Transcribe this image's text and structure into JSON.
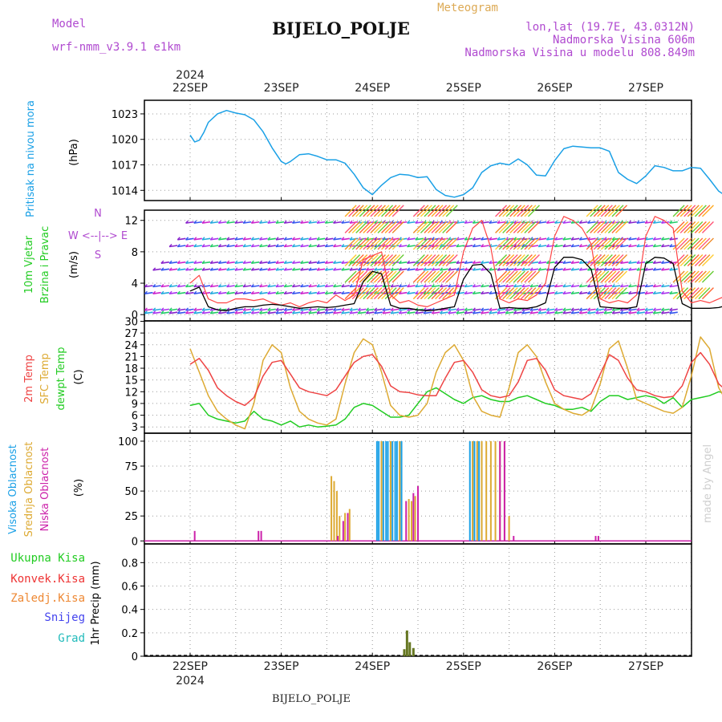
{
  "header": {
    "model_label": "Model",
    "model_name": "wrf-nmm_v3.9.1 e1km",
    "meteogram_label": "Meteogram",
    "station": "BIJELO_POLJE",
    "lonlat": "lon,lat (19.7E, 43.0312N)",
    "altitude": "Nadmorska Visina 606m",
    "model_altitude": "Nadmorska Visina u modelu 808.849m"
  },
  "dates": {
    "year": "2024",
    "labels": [
      "22SEP",
      "23SEP",
      "24SEP",
      "25SEP",
      "26SEP",
      "27SEP"
    ]
  },
  "footer": {
    "station": "BIJELO_POLJE"
  },
  "watermark": "made by Angel",
  "colors": {
    "pressure": "#1aa0e6",
    "wind_label": "#22cc22",
    "wind_speed": "#000000",
    "gust": "#ff4444",
    "temp_2m": "#ee4444",
    "temp_sfc": "#ddaa33",
    "dewpoint": "#22cc22",
    "cloud_high": "#1aa0e6",
    "cloud_mid": "#ddaa33",
    "cloud_low": "#cc22aa",
    "precip_total": "#22cc22",
    "precip_conv": "#ee3333",
    "precip_strat": "#ee8833",
    "snow": "#4444ee",
    "hail": "#22bbbb",
    "precip_bar": "#667722"
  },
  "chart_data": [
    {
      "type": "line",
      "panel": "pressure",
      "ylabel_colored": "Pritisak na nivou mora",
      "unit": "(hPa)",
      "yticks": [
        1014,
        1017,
        1020,
        1023
      ],
      "ylim": [
        1012.8,
        1024.6
      ],
      "xlim": [
        0,
        6
      ],
      "grid": true,
      "x": [
        0.0,
        0.05,
        0.1,
        0.15,
        0.2,
        0.3,
        0.4,
        0.5,
        0.6,
        0.7,
        0.8,
        0.9,
        1.0,
        1.05,
        1.1,
        1.2,
        1.3,
        1.4,
        1.5,
        1.6,
        1.7,
        1.8,
        1.9,
        2.0,
        2.1,
        2.2,
        2.3,
        2.4,
        2.5,
        2.6,
        2.7,
        2.8,
        2.9,
        3.0,
        3.1,
        3.2,
        3.3,
        3.4,
        3.5,
        3.6,
        3.7,
        3.8,
        3.9,
        4.0,
        4.1,
        4.2,
        4.3,
        4.4,
        4.5,
        4.6,
        4.7,
        4.8,
        4.9,
        5.0,
        5.1,
        5.2,
        5.3,
        5.4,
        5.5,
        5.6,
        5.7,
        5.8,
        5.9,
        6.0
      ],
      "values": [
        1020.5,
        1019.7,
        1019.9,
        1020.8,
        1022.0,
        1023.0,
        1023.4,
        1023.1,
        1022.9,
        1022.3,
        1020.9,
        1019.0,
        1017.4,
        1017.1,
        1017.4,
        1018.2,
        1018.3,
        1018.0,
        1017.6,
        1017.6,
        1017.2,
        1015.9,
        1014.3,
        1013.5,
        1014.6,
        1015.5,
        1015.9,
        1015.8,
        1015.5,
        1015.6,
        1014.1,
        1013.4,
        1013.2,
        1013.5,
        1014.3,
        1016.1,
        1016.9,
        1017.2,
        1017.0,
        1017.7,
        1017.0,
        1015.8,
        1015.7,
        1017.5,
        1018.9,
        1019.2,
        1019.1,
        1019.0,
        1019.0,
        1018.6,
        1016.1,
        1015.3,
        1014.8,
        1015.7,
        1016.9,
        1016.7,
        1016.3,
        1016.3,
        1016.7,
        1016.6,
        1015.3,
        1013.9,
        1013.2,
        1012.9
      ]
    },
    {
      "type": "line",
      "panel": "wind",
      "ylabel_colored": [
        "10m Vjetar",
        "Brzina i Pravac"
      ],
      "unit": "(m/s)",
      "legend_compass": [
        "N",
        "W <--|--> E",
        "S"
      ],
      "yticks": [
        0,
        4,
        8,
        12
      ],
      "ylim": [
        -0.8,
        13.3
      ],
      "xlim": [
        0,
        6
      ],
      "grid": true,
      "series": [
        {
          "role": "speed",
          "x": [
            0.0,
            0.1,
            0.2,
            0.3,
            0.4,
            0.5,
            0.6,
            0.7,
            0.8,
            0.9,
            1.0,
            1.1,
            1.2,
            1.3,
            1.4,
            1.5,
            1.6,
            1.7,
            1.8,
            1.9,
            2.0,
            2.1,
            2.2,
            2.3,
            2.4,
            2.5,
            2.6,
            2.7,
            2.8,
            2.9,
            3.0,
            3.1,
            3.2,
            3.3,
            3.4,
            3.5,
            3.6,
            3.7,
            3.8,
            3.9,
            4.0,
            4.1,
            4.2,
            4.3,
            4.4,
            4.5,
            4.6,
            4.7,
            4.8,
            4.9,
            5.0,
            5.1,
            5.2,
            5.3,
            5.4,
            5.5,
            5.6,
            5.7,
            5.8,
            5.9,
            6.0
          ],
          "values": [
            3.0,
            3.5,
            1.0,
            0.6,
            0.5,
            0.8,
            1.0,
            1.0,
            1.2,
            1.3,
            1.2,
            1.0,
            0.8,
            0.9,
            1.0,
            0.9,
            1.0,
            1.2,
            1.4,
            4.2,
            5.5,
            5.2,
            1.2,
            0.8,
            0.8,
            0.6,
            0.5,
            0.6,
            0.8,
            1.0,
            4.5,
            6.3,
            6.4,
            5.2,
            0.8,
            0.9,
            0.8,
            0.8,
            1.0,
            1.5,
            6.0,
            7.3,
            7.3,
            7.0,
            5.8,
            1.0,
            0.9,
            0.8,
            0.8,
            1.0,
            6.5,
            7.3,
            7.2,
            6.5,
            1.4,
            0.8,
            0.8,
            0.8,
            0.9,
            1.2,
            2.8
          ]
        },
        {
          "role": "gust",
          "x": [
            0.0,
            0.1,
            0.2,
            0.3,
            0.4,
            0.5,
            0.6,
            0.7,
            0.8,
            0.9,
            1.0,
            1.1,
            1.2,
            1.3,
            1.4,
            1.5,
            1.6,
            1.7,
            1.8,
            1.9,
            2.0,
            2.1,
            2.2,
            2.3,
            2.4,
            2.5,
            2.6,
            2.7,
            2.8,
            2.9,
            3.0,
            3.1,
            3.2,
            3.3,
            3.4,
            3.5,
            3.6,
            3.7,
            3.8,
            3.9,
            4.0,
            4.1,
            4.2,
            4.3,
            4.4,
            4.5,
            4.6,
            4.7,
            4.8,
            4.9,
            5.0,
            5.1,
            5.2,
            5.3,
            5.4,
            5.5,
            5.6,
            5.7,
            5.8,
            5.9,
            6.0
          ],
          "values": [
            4.0,
            5.0,
            2.0,
            1.5,
            1.5,
            2.0,
            2.0,
            1.8,
            2.0,
            1.5,
            1.2,
            1.5,
            1.0,
            1.5,
            1.8,
            1.5,
            2.5,
            1.8,
            2.5,
            7.0,
            7.5,
            8.0,
            2.5,
            1.5,
            1.8,
            1.2,
            1.0,
            1.5,
            2.0,
            2.5,
            8.0,
            11.0,
            12.0,
            8.5,
            2.0,
            1.5,
            2.0,
            1.8,
            2.5,
            4.0,
            10.0,
            12.5,
            12.0,
            11.0,
            9.0,
            2.0,
            1.5,
            1.8,
            1.5,
            2.5,
            10.0,
            12.5,
            12.0,
            11.0,
            3.0,
            1.5,
            1.8,
            1.5,
            2.0,
            2.5,
            5.0
          ]
        }
      ]
    },
    {
      "type": "line",
      "panel": "temperature",
      "ylabel_colored": [
        "2m Temp",
        "SFC Temp",
        "dewpt Temp"
      ],
      "unit": "(C)",
      "yticks": [
        3,
        6,
        9,
        12,
        15,
        18,
        21,
        24,
        27,
        30
      ],
      "ylim": [
        1.4,
        30.1
      ],
      "xlim": [
        0,
        6
      ],
      "grid": true,
      "series": [
        {
          "role": "t2m",
          "x": [
            0.0,
            0.1,
            0.2,
            0.3,
            0.4,
            0.5,
            0.6,
            0.7,
            0.8,
            0.9,
            1.0,
            1.1,
            1.2,
            1.3,
            1.4,
            1.5,
            1.6,
            1.7,
            1.8,
            1.9,
            2.0,
            2.1,
            2.2,
            2.3,
            2.4,
            2.5,
            2.6,
            2.7,
            2.8,
            2.9,
            3.0,
            3.1,
            3.2,
            3.3,
            3.4,
            3.5,
            3.6,
            3.7,
            3.8,
            3.9,
            4.0,
            4.1,
            4.2,
            4.3,
            4.4,
            4.5,
            4.6,
            4.7,
            4.8,
            4.9,
            5.0,
            5.1,
            5.2,
            5.3,
            5.4,
            5.5,
            5.6,
            5.7,
            5.8,
            5.9,
            6.0
          ],
          "values": [
            19.0,
            20.5,
            17.5,
            13.0,
            11.0,
            9.5,
            8.5,
            10.5,
            16.0,
            19.5,
            20.0,
            16.5,
            13.0,
            12.0,
            11.5,
            11.0,
            12.5,
            16.0,
            19.5,
            21.0,
            21.5,
            18.5,
            13.5,
            12.0,
            11.8,
            11.2,
            11.0,
            11.0,
            15.5,
            19.5,
            20.0,
            17.0,
            12.5,
            11.0,
            10.5,
            11.0,
            14.5,
            20.0,
            20.5,
            17.5,
            12.5,
            11.0,
            10.5,
            10.0,
            11.5,
            16.5,
            21.5,
            20.0,
            15.5,
            12.5,
            12.0,
            11.0,
            10.5,
            10.8,
            13.5,
            19.5,
            22.0,
            19.0,
            14.0,
            12.0,
            11.0
          ]
        },
        {
          "role": "tsfc",
          "x": [
            0.0,
            0.1,
            0.2,
            0.3,
            0.4,
            0.5,
            0.6,
            0.7,
            0.8,
            0.9,
            1.0,
            1.1,
            1.2,
            1.3,
            1.4,
            1.5,
            1.6,
            1.7,
            1.8,
            1.9,
            2.0,
            2.1,
            2.2,
            2.3,
            2.4,
            2.5,
            2.6,
            2.7,
            2.8,
            2.9,
            3.0,
            3.1,
            3.2,
            3.3,
            3.4,
            3.5,
            3.6,
            3.7,
            3.8,
            3.9,
            4.0,
            4.1,
            4.2,
            4.3,
            4.4,
            4.5,
            4.6,
            4.7,
            4.8,
            4.9,
            5.0,
            5.1,
            5.2,
            5.3,
            5.4,
            5.5,
            5.6,
            5.7,
            5.8,
            5.9,
            6.0
          ],
          "values": [
            23.0,
            17.0,
            11.0,
            7.0,
            5.0,
            3.5,
            2.5,
            9.0,
            20.0,
            24.0,
            22.0,
            13.0,
            7.0,
            5.0,
            4.0,
            3.5,
            5.0,
            14.0,
            22.0,
            25.5,
            24.0,
            17.0,
            8.5,
            6.0,
            5.5,
            6.0,
            9.0,
            17.0,
            22.0,
            24.0,
            20.0,
            11.0,
            7.0,
            6.0,
            5.5,
            13.0,
            22.0,
            24.0,
            21.0,
            14.5,
            9.0,
            7.5,
            6.5,
            6.0,
            7.5,
            14.0,
            23.0,
            25.0,
            18.0,
            10.0,
            9.0,
            8.0,
            7.0,
            6.5,
            8.0,
            16.0,
            26.0,
            23.0,
            13.0,
            9.0,
            8.0
          ]
        },
        {
          "role": "dewpoint",
          "x": [
            0.0,
            0.1,
            0.2,
            0.3,
            0.4,
            0.5,
            0.6,
            0.7,
            0.8,
            0.9,
            1.0,
            1.1,
            1.2,
            1.3,
            1.4,
            1.5,
            1.6,
            1.7,
            1.8,
            1.9,
            2.0,
            2.1,
            2.2,
            2.3,
            2.4,
            2.5,
            2.6,
            2.7,
            2.8,
            2.9,
            3.0,
            3.1,
            3.2,
            3.3,
            3.4,
            3.5,
            3.6,
            3.7,
            3.8,
            3.9,
            4.0,
            4.1,
            4.2,
            4.3,
            4.4,
            4.5,
            4.6,
            4.7,
            4.8,
            4.9,
            5.0,
            5.1,
            5.2,
            5.3,
            5.4,
            5.5,
            5.6,
            5.7,
            5.8,
            5.9,
            6.0
          ],
          "values": [
            8.5,
            9.0,
            6.0,
            5.0,
            4.5,
            4.0,
            4.5,
            7.0,
            5.0,
            4.5,
            3.5,
            4.5,
            3.0,
            3.5,
            3.0,
            3.2,
            3.5,
            5.0,
            8.0,
            9.0,
            8.5,
            7.0,
            5.5,
            5.5,
            6.0,
            9.0,
            12.0,
            13.0,
            11.5,
            10.0,
            9.0,
            10.5,
            11.0,
            10.0,
            9.5,
            9.5,
            10.5,
            11.0,
            10.0,
            9.0,
            8.5,
            7.5,
            7.5,
            8.0,
            7.0,
            9.5,
            11.0,
            11.0,
            10.0,
            10.5,
            11.0,
            10.5,
            9.0,
            10.5,
            8.0,
            10.0,
            10.5,
            11.0,
            12.0,
            11.5,
            12.5
          ]
        }
      ]
    },
    {
      "type": "bar",
      "panel": "clouds",
      "ylabel_colored": [
        "Visoka Oblacnost",
        "Srednja Oblacnost",
        "Niska Oblacnost"
      ],
      "unit": "(%)",
      "yticks": [
        0,
        25,
        50,
        75,
        100
      ],
      "ylim": [
        -3,
        108
      ],
      "xlim": [
        0,
        6
      ],
      "grid": true,
      "series": [
        {
          "role": "high",
          "x": [
            2.05,
            2.07,
            2.1,
            2.12,
            2.15,
            2.17,
            2.2,
            2.22,
            2.25,
            2.27,
            2.3,
            2.32,
            3.07,
            3.1,
            3.12,
            3.15,
            3.17,
            3.2
          ],
          "values": [
            100,
            100,
            100,
            100,
            100,
            100,
            100,
            100,
            100,
            100,
            100,
            100,
            100,
            100,
            100,
            100,
            100,
            100
          ]
        },
        {
          "role": "mid",
          "x": [
            1.55,
            1.58,
            1.61,
            1.64,
            1.7,
            1.75,
            2.1,
            2.2,
            2.3,
            2.4,
            2.43,
            2.47,
            2.5,
            3.1,
            3.15,
            3.2,
            3.25,
            3.3,
            3.35,
            3.4,
            3.45,
            3.5
          ],
          "values": [
            65,
            60,
            50,
            25,
            28,
            32,
            100,
            100,
            100,
            42,
            40,
            45,
            55,
            100,
            100,
            100,
            100,
            100,
            100,
            100,
            100,
            25
          ]
        },
        {
          "role": "low",
          "x": [
            0.05,
            0.75,
            0.78,
            1.62,
            1.68,
            1.73,
            2.37,
            2.45,
            2.5,
            3.4,
            3.45,
            3.55,
            4.45,
            4.48
          ],
          "values": [
            10,
            10,
            10,
            5,
            20,
            28,
            40,
            48,
            55,
            100,
            100,
            5,
            5,
            5
          ]
        }
      ]
    },
    {
      "type": "bar",
      "panel": "precip",
      "legend": [
        "Ukupna Kisa",
        "Konvek.Kisa",
        "Zaledj.Kisa",
        "Snijeg",
        "Grad"
      ],
      "ylabel": "1hr Precip (mm)",
      "yticks": [
        0,
        0.2,
        0.4,
        0.6,
        0.8
      ],
      "ylim": [
        0,
        0.96
      ],
      "xlim": [
        0,
        6
      ],
      "grid": true,
      "x": [
        2.35,
        2.38,
        2.41,
        2.45
      ],
      "values": [
        0.06,
        0.22,
        0.12,
        0.07
      ]
    }
  ]
}
